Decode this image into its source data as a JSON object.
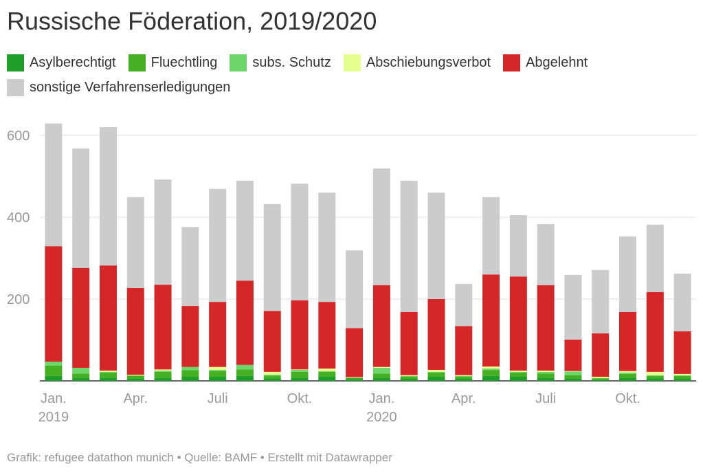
{
  "chart_data": {
    "type": "stacked-bar",
    "title": "Russische Föderation, 2019/2020",
    "categories": [
      "Jan. 2019",
      null,
      null,
      "Apr.",
      null,
      null,
      "Juli",
      null,
      null,
      "Okt.",
      null,
      null,
      "Jan. 2020",
      null,
      null,
      "Apr.",
      null,
      null,
      "Juli",
      null,
      null,
      "Okt.",
      null,
      null
    ],
    "series": [
      {
        "name": "Asylberechtigt",
        "color": "#1f9e2a",
        "values": [
          12,
          8,
          8,
          6,
          8,
          10,
          10,
          12,
          6,
          8,
          10,
          4,
          8,
          5,
          10,
          5,
          12,
          10,
          8,
          6,
          3,
          8,
          6,
          5
        ]
      },
      {
        "name": "Fluechtling",
        "color": "#44b022",
        "values": [
          25,
          10,
          12,
          7,
          14,
          16,
          14,
          16,
          7,
          14,
          12,
          3,
          10,
          5,
          10,
          5,
          14,
          10,
          10,
          8,
          3,
          9,
          6,
          7
        ]
      },
      {
        "name": "subs. Schutz",
        "color": "#6dd66a",
        "values": [
          10,
          14,
          2,
          0,
          3,
          8,
          3,
          11,
          2,
          5,
          2,
          1,
          14,
          2,
          2,
          2,
          4,
          2,
          4,
          9,
          1,
          3,
          2,
          2
        ]
      },
      {
        "name": "Abschiebungsverbot",
        "color": "#e6ff8c",
        "values": [
          0,
          0,
          3,
          2,
          3,
          0,
          7,
          0,
          7,
          1,
          6,
          1,
          2,
          2,
          5,
          2,
          5,
          3,
          3,
          1,
          3,
          4,
          8,
          3
        ]
      },
      {
        "name": "Abgelehnt",
        "color": "#d62728",
        "values": [
          282,
          244,
          257,
          212,
          207,
          149,
          159,
          206,
          149,
          169,
          163,
          120,
          200,
          154,
          173,
          120,
          225,
          230,
          209,
          77,
          106,
          144,
          195,
          104
        ]
      },
      {
        "name": "sonstige Verfahrenserledigungen",
        "color": "#cccccc",
        "values": [
          300,
          292,
          338,
          222,
          257,
          193,
          276,
          244,
          261,
          285,
          267,
          190,
          285,
          321,
          260,
          103,
          189,
          150,
          149,
          158,
          155,
          185,
          165,
          141
        ]
      }
    ],
    "ylim": [
      0,
      630
    ],
    "yticks": [
      200,
      400,
      600
    ],
    "grid": true,
    "source": "Grafik: refugee datathon munich • Quelle: BAMF • Erstellt mit Datawrapper"
  }
}
